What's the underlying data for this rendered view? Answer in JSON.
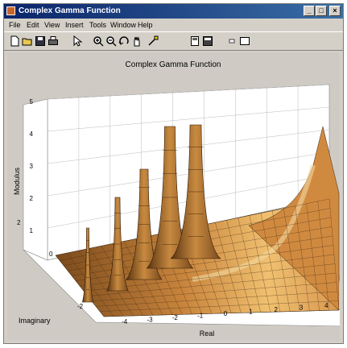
{
  "window": {
    "title": "Complex Gamma Function",
    "minimize_glyph": "_",
    "maximize_glyph": "□",
    "close_glyph": "×"
  },
  "menu": [
    "File",
    "Edit",
    "View",
    "Insert",
    "Tools",
    "Window",
    "Help"
  ],
  "toolbar": {
    "icons": [
      "new-file-icon",
      "open-folder-icon",
      "save-icon",
      "print-icon",
      "select-arrow-icon",
      "zoom-in-icon",
      "zoom-out-icon",
      "rotate-3d-icon",
      "pan-icon",
      "data-cursor-icon",
      "figure-palette-icon",
      "property-editor-icon",
      "colorbar-icon",
      "legend-icon"
    ]
  },
  "chart_data": {
    "type": "surface",
    "title": "Complex Gamma Function",
    "xlabel": "Real",
    "ylabel": "Imaginary",
    "zlabel": "Modulus",
    "x_ticks": [
      "-4",
      "-3",
      "-2",
      "-1",
      "0",
      "1",
      "2",
      "3",
      "4"
    ],
    "y_ticks": [
      "-2",
      "0",
      "2"
    ],
    "z_ticks": [
      "1",
      "2",
      "3",
      "4",
      "5"
    ],
    "xlim": [
      -4.5,
      4.5
    ],
    "ylim": [
      -2,
      2
    ],
    "zlim": [
      0,
      5
    ],
    "grid": true,
    "poles_x": [
      -4,
      -3,
      -2,
      -1,
      0
    ],
    "surface_color": "#c8843c"
  }
}
